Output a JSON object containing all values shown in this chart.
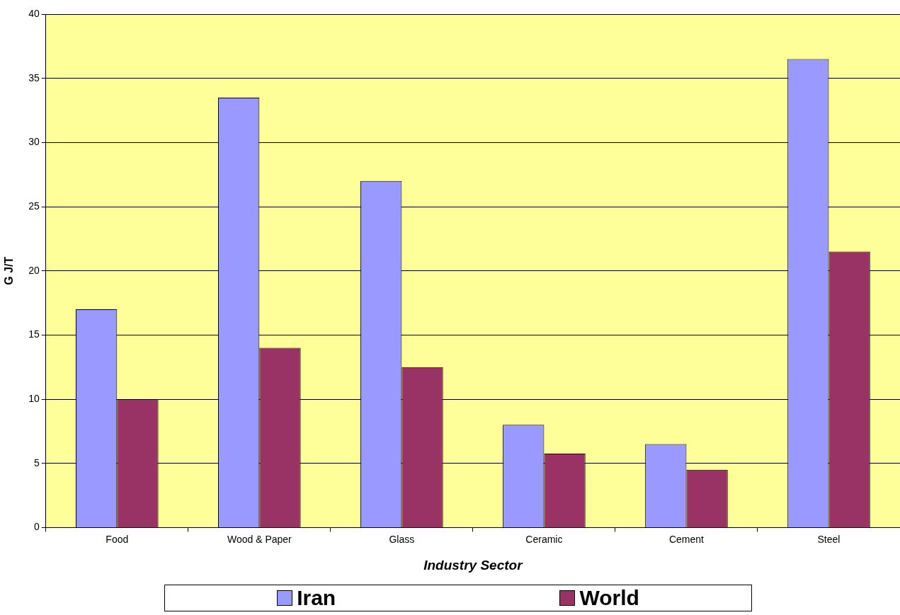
{
  "chart_data": {
    "type": "bar",
    "xlabel": "Industry Sector",
    "ylabel": "G J/T",
    "categories": [
      "Food",
      "Wood & Paper",
      "Glass",
      "Ceramic",
      "Cement",
      "Steel"
    ],
    "series": [
      {
        "name": "Iran",
        "color": "#9999ff",
        "values": [
          17,
          33.5,
          27,
          8,
          6.5,
          36.5
        ]
      },
      {
        "name": "World",
        "color": "#993366",
        "values": [
          10,
          14,
          12.5,
          5.75,
          4.5,
          21.5
        ]
      }
    ],
    "ylim": [
      0,
      40
    ],
    "yticks": [
      0,
      5,
      10,
      15,
      20,
      25,
      30,
      35,
      40
    ],
    "grid": "y",
    "legend": "bottom"
  }
}
